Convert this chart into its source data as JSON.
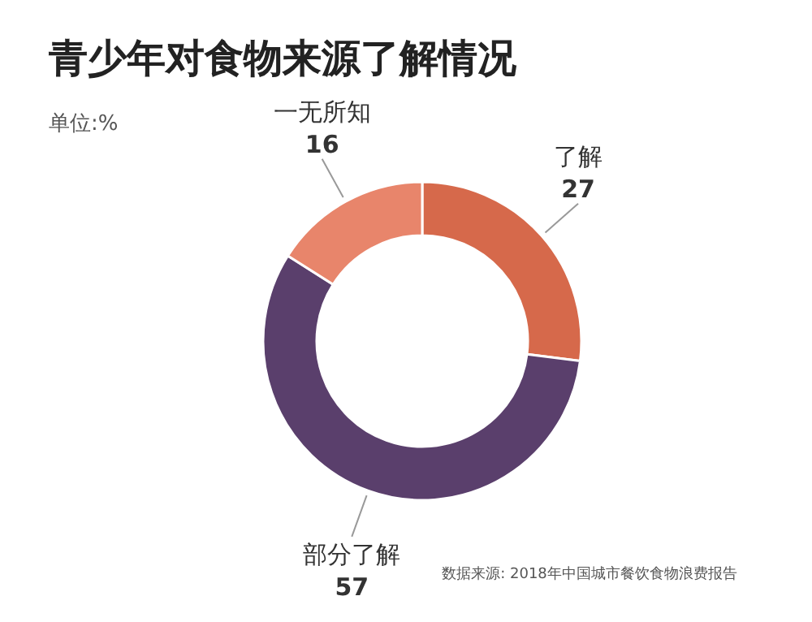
{
  "chart_data": {
    "type": "donut",
    "title": "青少年对食物来源了解情况",
    "annotations": [
      "单位:%",
      "数据来源: 2018年中国城市餐饮食物浪费报告"
    ],
    "categories": [
      "了解",
      "部分了解",
      "一无所知"
    ],
    "values": [
      27,
      57,
      16
    ],
    "colors": [
      "#d6694b",
      "#5a3f6c",
      "#e8856b"
    ],
    "data_labels": true
  }
}
